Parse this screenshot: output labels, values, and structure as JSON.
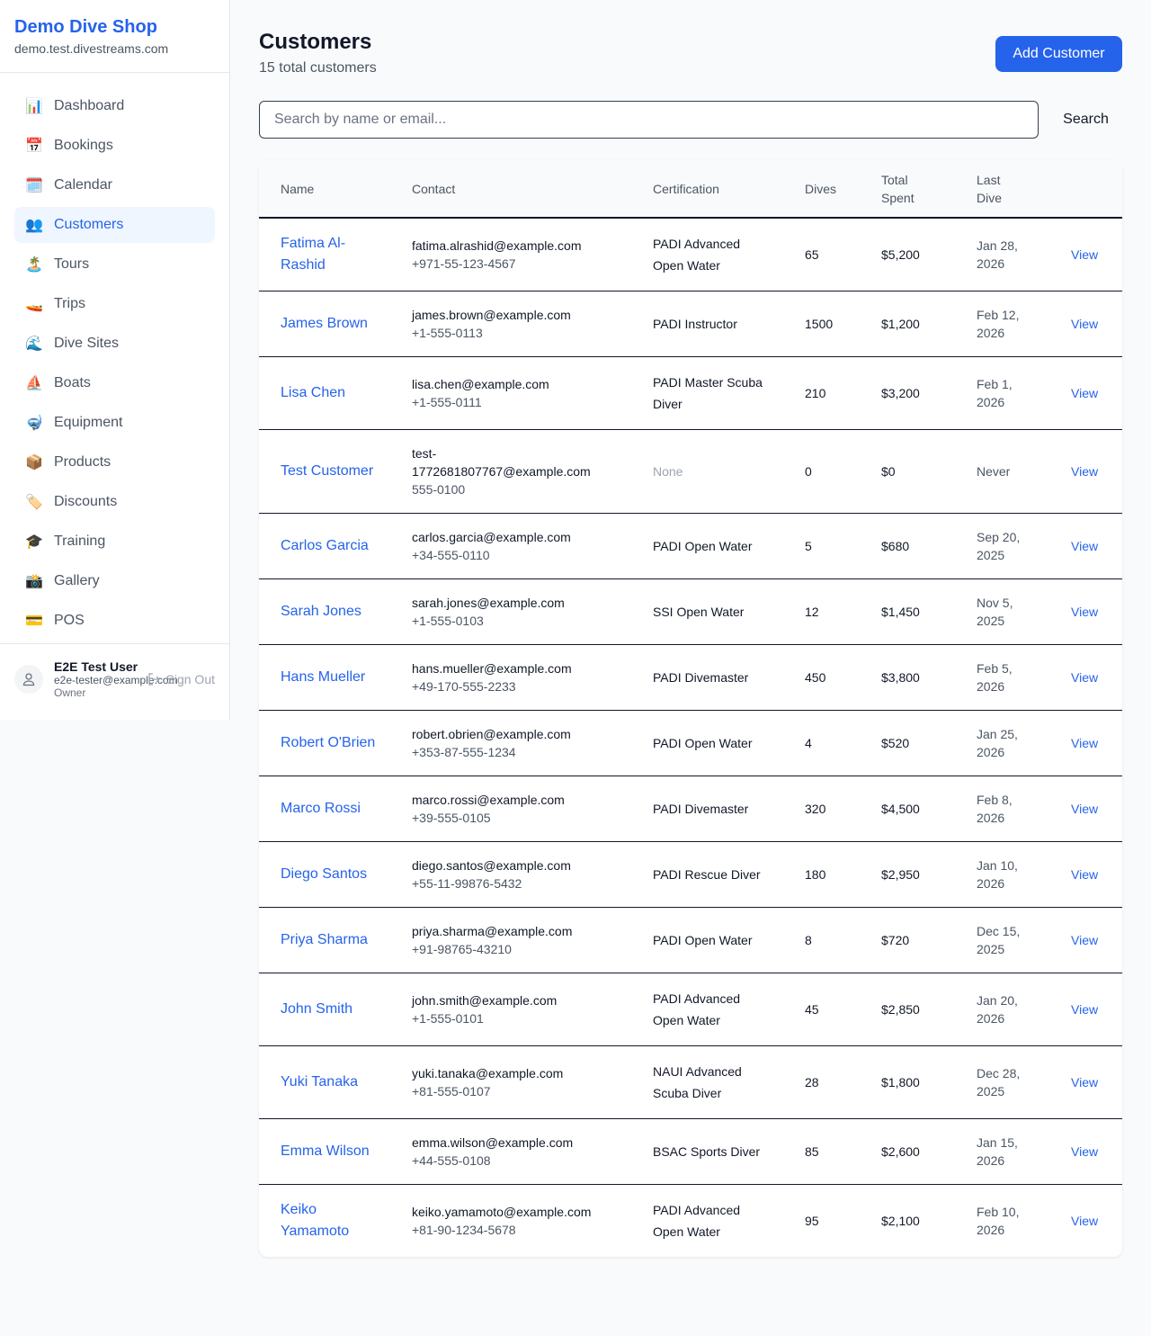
{
  "sidebar": {
    "brand": "Demo Dive Shop",
    "domain": "demo.test.divestreams.com",
    "items": [
      {
        "label": "Dashboard",
        "icon": "📊",
        "active": false
      },
      {
        "label": "Bookings",
        "icon": "📅",
        "active": false
      },
      {
        "label": "Calendar",
        "icon": "🗓️",
        "active": false
      },
      {
        "label": "Customers",
        "icon": "👥",
        "active": true
      },
      {
        "label": "Tours",
        "icon": "🏝️",
        "active": false
      },
      {
        "label": "Trips",
        "icon": "🚤",
        "active": false
      },
      {
        "label": "Dive Sites",
        "icon": "🌊",
        "active": false
      },
      {
        "label": "Boats",
        "icon": "⛵",
        "active": false
      },
      {
        "label": "Equipment",
        "icon": "🤿",
        "active": false
      },
      {
        "label": "Products",
        "icon": "📦",
        "active": false
      },
      {
        "label": "Discounts",
        "icon": "🏷️",
        "active": false
      },
      {
        "label": "Training",
        "icon": "🎓",
        "active": false
      },
      {
        "label": "Gallery",
        "icon": "📸",
        "active": false
      },
      {
        "label": "POS",
        "icon": "💳",
        "active": false
      }
    ],
    "user": {
      "name": "E2E Test User",
      "email": "e2e-tester@example.com",
      "role": "Owner",
      "sign_out": "Sign Out"
    }
  },
  "header": {
    "title": "Customers",
    "subtitle": "15 total customers",
    "add_label": "Add Customer"
  },
  "search": {
    "placeholder": "Search by name or email...",
    "value": "",
    "button": "Search"
  },
  "table": {
    "headers": [
      "Name",
      "Contact",
      "Certification",
      "Dives",
      "Total Spent",
      "Last Dive",
      ""
    ],
    "rows": [
      {
        "name": "Fatima Al-Rashid",
        "email": "fatima.alrashid@example.com",
        "phone": "+971-55-123-4567",
        "cert": "PADI Advanced Open Water",
        "dives": "65",
        "spent": "$5,200",
        "last": "Jan 28, 2026",
        "action": "View"
      },
      {
        "name": "James Brown",
        "email": "james.brown@example.com",
        "phone": "+1-555-0113",
        "cert": "PADI Instructor",
        "dives": "1500",
        "spent": "$1,200",
        "last": "Feb 12, 2026",
        "action": "View"
      },
      {
        "name": "Lisa Chen",
        "email": "lisa.chen@example.com",
        "phone": "+1-555-0111",
        "cert": "PADI Master Scuba Diver",
        "dives": "210",
        "spent": "$3,200",
        "last": "Feb 1, 2026",
        "action": "View"
      },
      {
        "name": "Test Customer",
        "email": "test-1772681807767@example.com",
        "phone": "555-0100",
        "cert": "None",
        "dives": "0",
        "spent": "$0",
        "last": "Never",
        "action": "View"
      },
      {
        "name": "Carlos Garcia",
        "email": "carlos.garcia@example.com",
        "phone": "+34-555-0110",
        "cert": "PADI Open Water",
        "dives": "5",
        "spent": "$680",
        "last": "Sep 20, 2025",
        "action": "View"
      },
      {
        "name": "Sarah Jones",
        "email": "sarah.jones@example.com",
        "phone": "+1-555-0103",
        "cert": "SSI Open Water",
        "dives": "12",
        "spent": "$1,450",
        "last": "Nov 5, 2025",
        "action": "View"
      },
      {
        "name": "Hans Mueller",
        "email": "hans.mueller@example.com",
        "phone": "+49-170-555-2233",
        "cert": "PADI Divemaster",
        "dives": "450",
        "spent": "$3,800",
        "last": "Feb 5, 2026",
        "action": "View"
      },
      {
        "name": "Robert O'Brien",
        "email": "robert.obrien@example.com",
        "phone": "+353-87-555-1234",
        "cert": "PADI Open Water",
        "dives": "4",
        "spent": "$520",
        "last": "Jan 25, 2026",
        "action": "View"
      },
      {
        "name": "Marco Rossi",
        "email": "marco.rossi@example.com",
        "phone": "+39-555-0105",
        "cert": "PADI Divemaster",
        "dives": "320",
        "spent": "$4,500",
        "last": "Feb 8, 2026",
        "action": "View"
      },
      {
        "name": "Diego Santos",
        "email": "diego.santos@example.com",
        "phone": "+55-11-99876-5432",
        "cert": "PADI Rescue Diver",
        "dives": "180",
        "spent": "$2,950",
        "last": "Jan 10, 2026",
        "action": "View"
      },
      {
        "name": "Priya Sharma",
        "email": "priya.sharma@example.com",
        "phone": "+91-98765-43210",
        "cert": "PADI Open Water",
        "dives": "8",
        "spent": "$720",
        "last": "Dec 15, 2025",
        "action": "View"
      },
      {
        "name": "John Smith",
        "email": "john.smith@example.com",
        "phone": "+1-555-0101",
        "cert": "PADI Advanced Open Water",
        "dives": "45",
        "spent": "$2,850",
        "last": "Jan 20, 2026",
        "action": "View"
      },
      {
        "name": "Yuki Tanaka",
        "email": "yuki.tanaka@example.com",
        "phone": "+81-555-0107",
        "cert": "NAUI Advanced Scuba Diver",
        "dives": "28",
        "spent": "$1,800",
        "last": "Dec 28, 2025",
        "action": "View"
      },
      {
        "name": "Emma Wilson",
        "email": "emma.wilson@example.com",
        "phone": "+44-555-0108",
        "cert": "BSAC Sports Diver",
        "dives": "85",
        "spent": "$2,600",
        "last": "Jan 15, 2026",
        "action": "View"
      },
      {
        "name": "Keiko Yamamoto",
        "email": "keiko.yamamoto@example.com",
        "phone": "+81-90-1234-5678",
        "cert": "PADI Advanced Open Water",
        "dives": "95",
        "spent": "$2,100",
        "last": "Feb 10, 2026",
        "action": "View"
      }
    ]
  }
}
